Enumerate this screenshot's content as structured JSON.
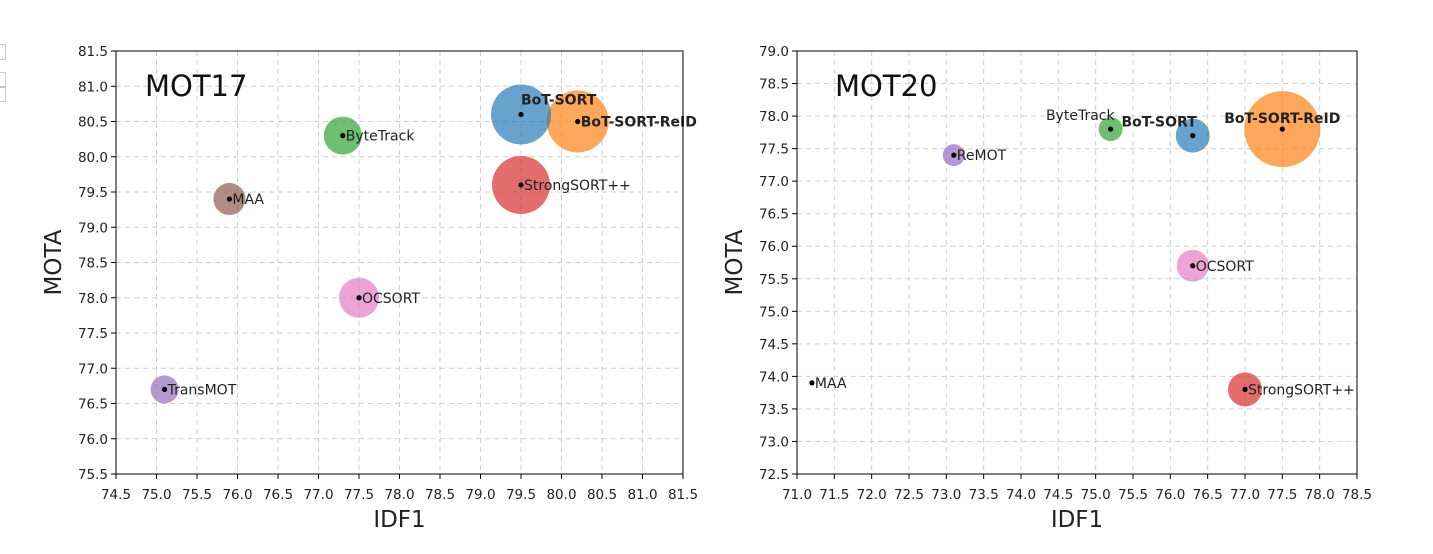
{
  "chart_data": [
    {
      "type": "scatter",
      "title": "MOT17",
      "xlabel": "IDF1",
      "ylabel": "MOTA",
      "xlim": [
        74.5,
        81.5
      ],
      "ylim": [
        75.5,
        81.5
      ],
      "xticks": [
        74.5,
        75.0,
        75.5,
        76.0,
        76.5,
        77.0,
        77.5,
        78.0,
        78.5,
        79.0,
        79.5,
        80.0,
        80.5,
        81.0,
        81.5
      ],
      "yticks": [
        75.5,
        76.0,
        76.5,
        77.0,
        77.5,
        78.0,
        78.5,
        79.0,
        79.5,
        80.0,
        80.5,
        81.0,
        81.5
      ],
      "grid": true,
      "points": [
        {
          "name": "BoT-SORT",
          "x": 79.5,
          "y": 80.6,
          "color": "#1f77b4",
          "size": 30,
          "bold": true,
          "label_pos": "above"
        },
        {
          "name": "BoT-SORT-ReID",
          "x": 80.2,
          "y": 80.5,
          "color": "#ff7f0e",
          "size": 31,
          "bold": true,
          "label_pos": "right"
        },
        {
          "name": "ByteTrack",
          "x": 77.3,
          "y": 80.3,
          "color": "#2ca02c",
          "size": 19,
          "bold": false,
          "label_pos": "right"
        },
        {
          "name": "StrongSORT++",
          "x": 79.5,
          "y": 79.6,
          "color": "#d62728",
          "size": 29,
          "bold": false,
          "label_pos": "right"
        },
        {
          "name": "MAA",
          "x": 75.9,
          "y": 79.4,
          "color": "#8c564b",
          "size": 16,
          "bold": false,
          "label_pos": "right"
        },
        {
          "name": "OCSORT",
          "x": 77.5,
          "y": 78.0,
          "color": "#e377c2",
          "size": 20,
          "bold": false,
          "label_pos": "right"
        },
        {
          "name": "TransMOT",
          "x": 75.1,
          "y": 76.7,
          "color": "#9467bd",
          "size": 14,
          "bold": false,
          "label_pos": "right"
        }
      ]
    },
    {
      "type": "scatter",
      "title": "MOT20",
      "xlabel": "IDF1",
      "ylabel": "MOTA",
      "xlim": [
        71.0,
        78.5
      ],
      "ylim": [
        72.5,
        79.0
      ],
      "xticks": [
        71.0,
        71.5,
        72.0,
        72.5,
        73.0,
        73.5,
        74.0,
        74.5,
        75.0,
        75.5,
        76.0,
        76.5,
        77.0,
        77.5,
        78.0,
        78.5
      ],
      "yticks": [
        72.5,
        73.0,
        73.5,
        74.0,
        74.5,
        75.0,
        75.5,
        76.0,
        76.5,
        77.0,
        77.5,
        78.0,
        78.5,
        79.0
      ],
      "grid": true,
      "points": [
        {
          "name": "ByteTrack",
          "x": 75.2,
          "y": 77.8,
          "color": "#2ca02c",
          "size": 12,
          "bold": false,
          "label_pos": "above-left"
        },
        {
          "name": "BoT-SORT",
          "x": 76.3,
          "y": 77.7,
          "color": "#1f77b4",
          "size": 17,
          "bold": true,
          "label_pos": "above-left"
        },
        {
          "name": "BoT-SORT-ReID",
          "x": 77.5,
          "y": 77.8,
          "color": "#ff7f0e",
          "size": 38,
          "bold": true,
          "label_pos": "above"
        },
        {
          "name": "ReMOT",
          "x": 73.1,
          "y": 77.4,
          "color": "#9467bd",
          "size": 11,
          "bold": false,
          "label_pos": "right"
        },
        {
          "name": "OCSORT",
          "x": 76.3,
          "y": 75.7,
          "color": "#e377c2",
          "size": 16,
          "bold": false,
          "label_pos": "right"
        },
        {
          "name": "MAA",
          "x": 71.2,
          "y": 73.9,
          "color": "#8c564b",
          "size": 0,
          "bold": false,
          "label_pos": "right"
        },
        {
          "name": "StrongSORT++",
          "x": 77.0,
          "y": 73.8,
          "color": "#d62728",
          "size": 17,
          "bold": false,
          "label_pos": "right"
        }
      ]
    }
  ]
}
